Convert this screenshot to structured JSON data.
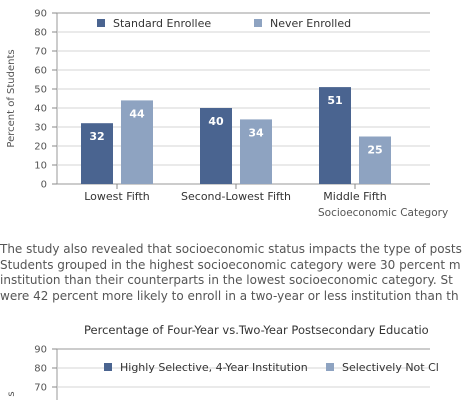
{
  "chart_data": [
    {
      "type": "bar",
      "categories": [
        "Lowest Fifth",
        "Second-Lowest Fifth",
        "Middle Fifth"
      ],
      "series": [
        {
          "name": "Standard Enrollee",
          "values": [
            32,
            40,
            51
          ],
          "color": "#4a6490"
        },
        {
          "name": "Never Enrolled",
          "values": [
            44,
            34,
            25
          ],
          "color": "#8ea3c1"
        }
      ],
      "xlabel": "Socioeconomic Category",
      "ylabel": "Percent of Students",
      "ylim": [
        0,
        90
      ],
      "yticks": [
        0,
        10,
        20,
        30,
        40,
        50,
        60,
        70,
        80,
        90
      ],
      "grid": true,
      "legend": "top"
    },
    {
      "type": "bar",
      "title": "Percentage of Four-Year vs.Two-Year Postsecondary Educatio",
      "series": [
        {
          "name": "Highly Selective, 4-Year Institution",
          "values": [],
          "color": "#4a6490"
        },
        {
          "name": "Selectively Not Cl",
          "values": [],
          "color": "#8ea3c1"
        }
      ],
      "ylabel": "s",
      "ylim": [
        0,
        90
      ],
      "yticks": [
        70,
        80,
        90
      ],
      "grid": true,
      "legend": "top"
    }
  ],
  "paragraph": [
    "The study also revealed that socioeconomic status impacts the type of posts",
    "Students grouped in the highest socioeconomic category were 30 percent m",
    "institution than their counterparts in the lowest socioeconomic category. St",
    "were 42 percent more likely to enroll in a two-year or less institution than th"
  ],
  "colors": {
    "axis": "#888888",
    "frame": "#9a9a9a",
    "grid": "#d4d4d4",
    "bar_label": "#ffffff",
    "text": "#333333"
  }
}
